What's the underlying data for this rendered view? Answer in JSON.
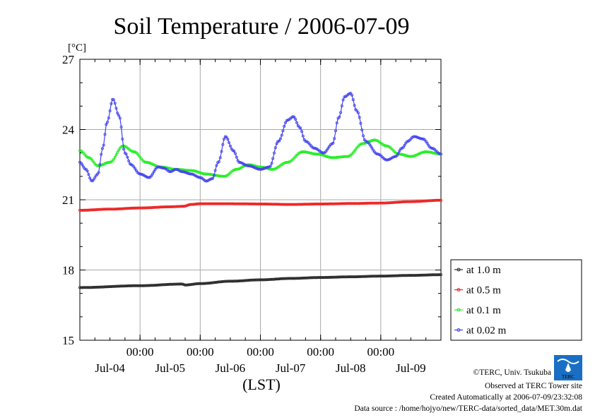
{
  "chart_data": {
    "type": "line",
    "title": "Soil Temperature / 2006-07-09",
    "ylabel": "[°C]",
    "xlabel": "(LST)",
    "ylim": [
      15,
      27
    ],
    "yticks": [
      "27",
      "24",
      "21",
      "18",
      "15"
    ],
    "xlim_days": [
      0,
      6
    ],
    "time_ticks": [
      "00:00",
      "00:00",
      "00:00",
      "00:00",
      "00:00"
    ],
    "date_ticks": [
      "Jul-04",
      "Jul-05",
      "Jul-06",
      "Jul-07",
      "Jul-08",
      "Jul-09"
    ],
    "grid": true,
    "legend_position": "right",
    "series": [
      {
        "name": "at 1.0 m",
        "color": "#2a2a2a",
        "x": [
          0,
          1,
          1.7,
          1.75,
          2,
          2.5,
          3,
          3.5,
          4,
          4.5,
          5,
          5.5,
          6
        ],
        "y": [
          17.25,
          17.33,
          17.4,
          17.36,
          17.42,
          17.52,
          17.58,
          17.64,
          17.68,
          17.71,
          17.74,
          17.77,
          17.8
        ]
      },
      {
        "name": "at 0.5 m",
        "color": "#ee2222",
        "x": [
          0,
          0.5,
          1,
          1.5,
          1.72,
          1.85,
          2,
          2.5,
          3,
          3.5,
          4,
          4.5,
          5,
          5.5,
          6
        ],
        "y": [
          20.55,
          20.6,
          20.65,
          20.7,
          20.72,
          20.8,
          20.83,
          20.83,
          20.82,
          20.8,
          20.82,
          20.84,
          20.86,
          20.92,
          20.98
        ]
      },
      {
        "name": "at 0.1 m",
        "color": "#22ee22",
        "x": [
          0,
          0.15,
          0.3,
          0.5,
          0.72,
          0.9,
          1.1,
          1.35,
          1.6,
          1.85,
          2.1,
          2.4,
          2.6,
          2.8,
          3.0,
          3.2,
          3.45,
          3.7,
          3.95,
          4.2,
          4.45,
          4.7,
          4.9,
          5.1,
          5.3,
          5.5,
          5.75,
          6
        ],
        "y": [
          23.1,
          22.8,
          22.45,
          22.6,
          23.3,
          23.05,
          22.6,
          22.4,
          22.3,
          22.25,
          22.1,
          22.0,
          22.3,
          22.5,
          22.4,
          22.3,
          22.6,
          23.05,
          22.95,
          22.8,
          22.85,
          23.4,
          23.55,
          23.3,
          22.95,
          22.85,
          23.05,
          22.95
        ]
      },
      {
        "name": "at 0.02 m",
        "color": "#4444ee",
        "x": [
          0,
          0.1,
          0.2,
          0.3,
          0.38,
          0.45,
          0.55,
          0.65,
          0.75,
          0.85,
          1.0,
          1.15,
          1.3,
          1.4,
          1.5,
          1.6,
          1.7,
          1.85,
          2.0,
          2.1,
          2.2,
          2.3,
          2.42,
          2.55,
          2.65,
          2.8,
          3.0,
          3.15,
          3.3,
          3.45,
          3.55,
          3.65,
          3.75,
          3.9,
          4.05,
          4.2,
          4.3,
          4.4,
          4.5,
          4.6,
          4.75,
          4.95,
          5.1,
          5.25,
          5.35,
          5.45,
          5.55,
          5.7,
          5.85,
          6
        ],
        "y": [
          22.6,
          22.3,
          21.8,
          22.1,
          23.2,
          24.3,
          25.3,
          24.6,
          23.0,
          22.5,
          22.1,
          21.95,
          22.4,
          22.35,
          22.2,
          22.3,
          22.2,
          22.1,
          21.95,
          21.8,
          21.9,
          22.6,
          23.7,
          23.1,
          22.6,
          22.45,
          22.3,
          22.4,
          23.5,
          24.4,
          24.55,
          24.1,
          23.5,
          23.2,
          23.0,
          23.4,
          24.5,
          25.4,
          25.55,
          24.8,
          23.5,
          22.95,
          22.7,
          22.85,
          23.2,
          23.5,
          23.7,
          23.6,
          23.2,
          22.95
        ]
      }
    ]
  },
  "credits": {
    "copyright": "©TERC, Univ. Tsukuba",
    "site": "Observed at TERC Tower site",
    "created": "Created Automatically at 2006-07-09/23:32:08",
    "source": "Data source : /home/hojyo/new/TERC-data/sorted_data/MET.30m.dat"
  },
  "logo": {
    "text": "TERC",
    "color": "#1a6fc4"
  }
}
